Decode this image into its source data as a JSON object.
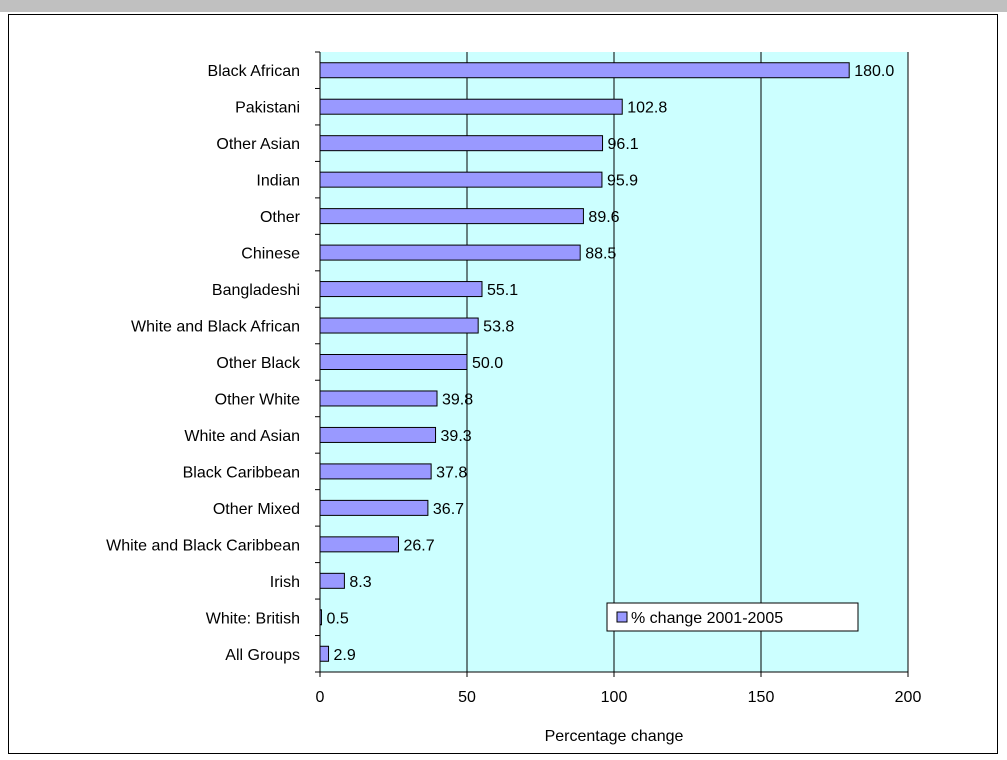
{
  "chart_data": {
    "type": "bar",
    "orientation": "horizontal",
    "categories": [
      "Black African",
      "Pakistani",
      "Other Asian",
      "Indian",
      "Other",
      "Chinese",
      "Bangladeshi",
      "White and Black African",
      "Other Black",
      "Other White",
      "White and Asian",
      "Black Caribbean",
      "Other Mixed",
      "White and Black Caribbean",
      "Irish",
      "White: British",
      "All Groups"
    ],
    "series": [
      {
        "name": "% change 2001-2005",
        "values": [
          180.0,
          102.8,
          96.1,
          95.9,
          89.6,
          88.5,
          55.1,
          53.8,
          50.0,
          39.8,
          39.3,
          37.8,
          36.7,
          26.7,
          8.3,
          0.5,
          2.9
        ]
      }
    ],
    "data_labels": [
      "180.0",
      "102.8",
      "96.1",
      "95.9",
      "89.6",
      "88.5",
      "55.1",
      "53.8",
      "50.0",
      "39.8",
      "39.3",
      "37.8",
      "36.7",
      "26.7",
      "8.3",
      "0.5",
      "2.9"
    ],
    "xlabel": "Percentage change",
    "xlim": [
      0,
      200
    ],
    "xticks": [
      0,
      50,
      100,
      150,
      200
    ],
    "grid": "vertical",
    "legend_position": "bottom-right inside",
    "colors": {
      "bar": "#9999ff",
      "plot_bg": "#ccffff",
      "outline": "#000000",
      "frame_strip": "#c0c0c0"
    }
  }
}
